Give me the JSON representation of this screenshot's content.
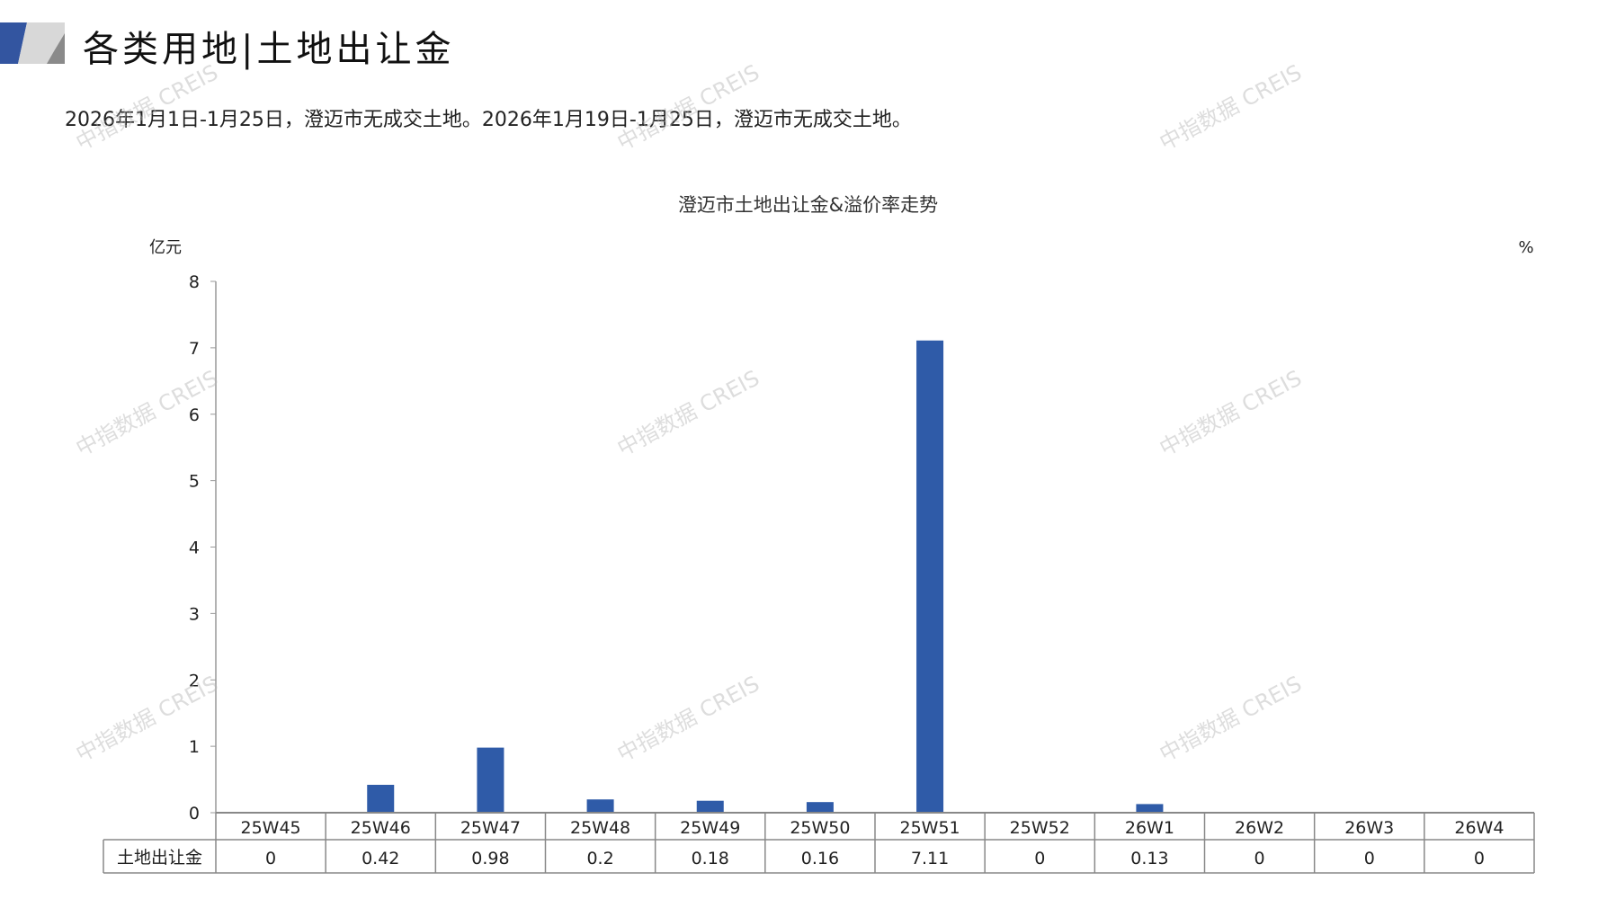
{
  "header": {
    "title": "各类用地|土地出让金",
    "subtitle": "2026年1月1日-1月25日，澄迈市无成交土地。2026年1月19日-1月25日，澄迈市无成交土地。"
  },
  "watermark": "中指数据 CREIS",
  "chart_data": {
    "type": "bar",
    "title": "澄迈市土地出让金&溢价率走势",
    "ylabel": "亿元",
    "y2label": "%",
    "ylim": [
      0,
      8
    ],
    "yticks": [
      0,
      1,
      2,
      3,
      4,
      5,
      6,
      7,
      8
    ],
    "categories": [
      "25W45",
      "25W46",
      "25W47",
      "25W48",
      "25W49",
      "25W50",
      "25W51",
      "25W52",
      "26W1",
      "26W2",
      "26W3",
      "26W4"
    ],
    "series": [
      {
        "name": "土地出让金",
        "values": [
          0,
          0.42,
          0.98,
          0.2,
          0.18,
          0.16,
          7.11,
          0,
          0.13,
          0,
          0,
          0
        ],
        "labels": [
          "0",
          "0.42",
          "0.98",
          "0.2",
          "0.18",
          "0.16",
          "7.11",
          "0",
          "0.13",
          "0",
          "0",
          "0"
        ],
        "color": "#2f5ba8"
      }
    ],
    "grid": false,
    "data_table": true
  }
}
